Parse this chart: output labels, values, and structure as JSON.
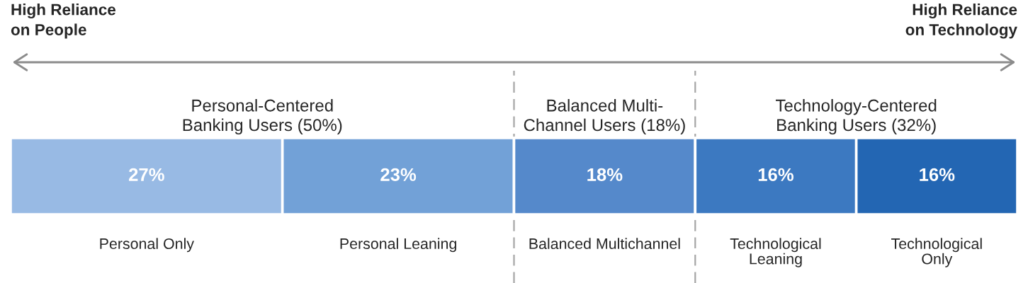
{
  "chart_data": {
    "type": "bar",
    "orientation": "horizontal",
    "stacked": true,
    "categories": [
      null
    ],
    "series": [
      {
        "name": "Personal Only",
        "color": "#98bae4",
        "values": [
          27
        ],
        "value_labels": [
          "27%"
        ]
      },
      {
        "name": "Personal Leaning",
        "color": "#72a1d7",
        "values": [
          23
        ],
        "value_labels": [
          "23%"
        ]
      },
      {
        "name": "Balanced Multichannel",
        "color": "#5589cb",
        "values": [
          18
        ],
        "value_labels": [
          "18%"
        ]
      },
      {
        "name": "Technological\nLeaning",
        "color": "#3c79c1",
        "values": [
          16
        ],
        "value_labels": [
          "16%"
        ]
      },
      {
        "name": "Technological\nOnly",
        "color": "#2366b3",
        "values": [
          16
        ],
        "value_labels": [
          "16%"
        ]
      }
    ],
    "xlim": [
      0,
      100
    ],
    "tick_labels": false,
    "ref_lines": [
      {
        "axis": "x",
        "value": 50,
        "line_style": "dashed",
        "color": "#a6a6a6"
      },
      {
        "axis": "x",
        "value": 68,
        "line_style": "dashed",
        "color": "#a6a6a6"
      }
    ],
    "annotations": [
      "High Reliance\non People",
      "High Reliance\non Technology",
      "Personal-Centered\nBanking Users (50%)",
      "Balanced Multi-\nChannel Users (18%)",
      "Technology-Centered\nBanking Users (32%)"
    ]
  }
}
